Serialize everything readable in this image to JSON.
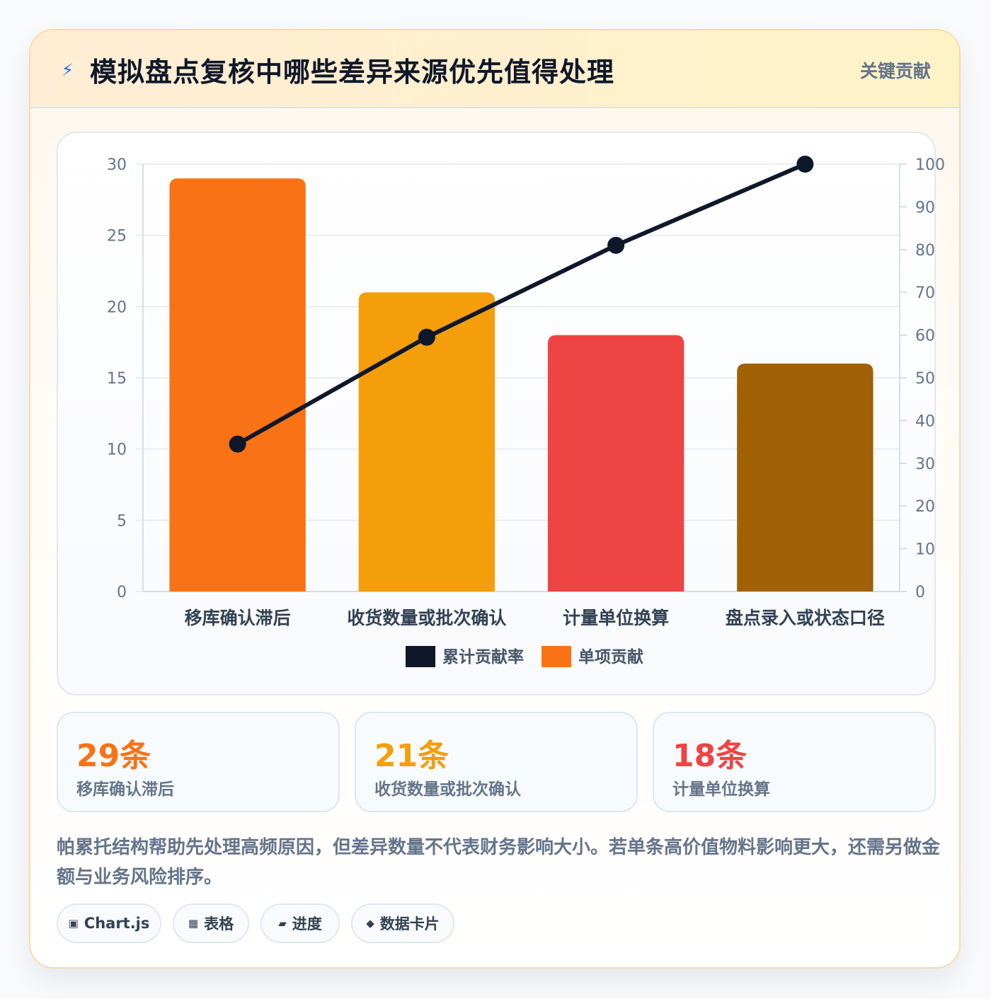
{
  "header": {
    "icon": "lightning-icon",
    "title": "模拟盘点复核中哪些差异来源优先值得处理",
    "tag": "关键贡献"
  },
  "chart_data": {
    "type": "bar",
    "categories": [
      "移库确认滞后",
      "收货数量或批次确认",
      "计量单位换算",
      "盘点录入或状态口径"
    ],
    "series": [
      {
        "name": "单项贡献",
        "type": "bar",
        "axis": "left",
        "values": [
          29,
          21,
          18,
          16
        ],
        "colors": [
          "#f97316",
          "#f59e0b",
          "#ef4444",
          "#a16207"
        ]
      },
      {
        "name": "累计贡献率",
        "type": "line",
        "axis": "right",
        "values": [
          34.5,
          59.5,
          81.0,
          100.0
        ],
        "color": "#0f172a"
      }
    ],
    "y_left": {
      "min": 0,
      "max": 30,
      "ticks": [
        0,
        5,
        10,
        15,
        20,
        25,
        30
      ]
    },
    "y_right": {
      "min": 0,
      "max": 100,
      "ticks": [
        0,
        10,
        20,
        30,
        40,
        50,
        60,
        70,
        80,
        90,
        100
      ]
    },
    "legend": {
      "position": "bottom",
      "items": [
        {
          "label": "累计贡献率",
          "color": "#0f172a"
        },
        {
          "label": "单项贡献",
          "color": "#f97316"
        }
      ]
    },
    "grid": true
  },
  "stats": [
    {
      "value": "29条",
      "label": "移库确认滞后",
      "color": "#f97316"
    },
    {
      "value": "21条",
      "label": "收货数量或批次确认",
      "color": "#f59e0b"
    },
    {
      "value": "18条",
      "label": "计量单位换算",
      "color": "#ef4444"
    }
  ],
  "note": "帕累托结构帮助先处理高频原因，但差异数量不代表财务影响大小。若单条高价值物料影响更大，还需另做金额与业务风险排序。",
  "tags": [
    {
      "icon": "square-icon",
      "glyph": "▣",
      "label": "Chart.js"
    },
    {
      "icon": "grid-icon",
      "glyph": "▦",
      "label": "表格"
    },
    {
      "icon": "progress-icon",
      "glyph": "▰",
      "label": "进度"
    },
    {
      "icon": "diamond-icon",
      "glyph": "◆",
      "label": "数据卡片"
    }
  ]
}
